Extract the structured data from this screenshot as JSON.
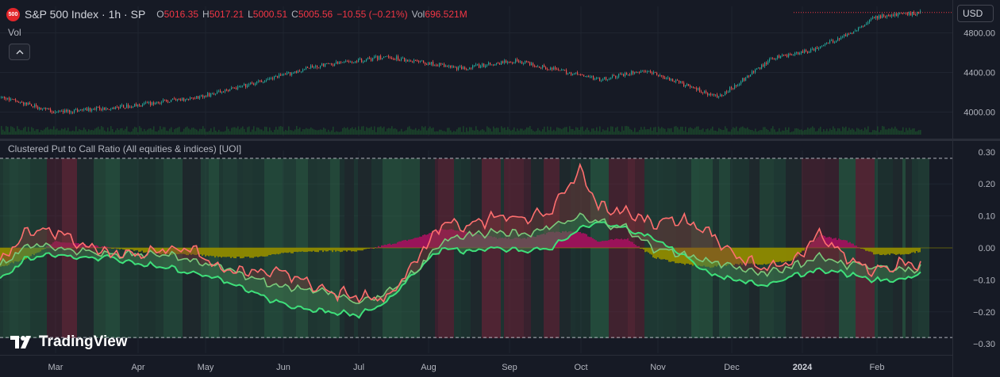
{
  "header": {
    "badge": "500",
    "symbol": "S&P 500 Index · 1h · SP",
    "open_label": "O",
    "open": "5016.35",
    "high_label": "H",
    "high": "5017.21",
    "low_label": "L",
    "low": "5000.51",
    "close_label": "C",
    "close": "5005.56",
    "change": "−10.55 (−0.21%)",
    "vol_label": "Vol",
    "vol": "696.521M"
  },
  "volume_pane_label": "Vol",
  "currency_button": "USD",
  "indicator_title": "Clustered Put to Call Ratio (All equities & indices) [UOI]",
  "brand": "TradingView",
  "colors": {
    "up": "#26a69a",
    "down": "#ef5350",
    "last_price_line": "#f23645",
    "green_band": "#2e6b4a",
    "red_band": "#6b2a3a",
    "dark_band": "#1f2a2e",
    "olive_hist": "#8f8a00",
    "magenta_hist": "#a0125c",
    "bright_green": "#3ee07a",
    "mid_green": "#7bc97a",
    "salmon": "#ff6f6f"
  },
  "chart_data": [
    {
      "type": "line",
      "title": "S&P 500 Index · 1h · SP",
      "subtitle": "candlestick",
      "x_tick_labels": [
        "Mar",
        "Apr",
        "May",
        "Jun",
        "Jul",
        "Aug",
        "Sep",
        "Oct",
        "Nov",
        "Dec",
        "2024",
        "Feb"
      ],
      "x_fraction": [
        0.0,
        0.06,
        0.14,
        0.22,
        0.28,
        0.34,
        0.42,
        0.5,
        0.56,
        0.65,
        0.7,
        0.78,
        0.84,
        0.88,
        0.92,
        0.95,
        1.0
      ],
      "close_values": [
        4150,
        4000,
        4060,
        4160,
        4300,
        4460,
        4560,
        4440,
        4520,
        4330,
        4420,
        4150,
        4550,
        4620,
        4780,
        4960,
        5005
      ],
      "y_tick_labels": [
        "4800.00",
        "4400.00",
        "4000.00"
      ],
      "ylim": [
        3820,
        5020
      ],
      "last_price": 5005.56,
      "grid": true
    },
    {
      "type": "area",
      "title": "Clustered Put to Call Ratio (All equities & indices) [UOI]",
      "x_tick_labels": [
        "Mar",
        "Apr",
        "May",
        "Jun",
        "Jul",
        "Aug",
        "Sep",
        "Oct",
        "Nov",
        "Dec",
        "2024",
        "Feb"
      ],
      "y_tick_labels": [
        "0.30",
        "0.20",
        "0.10",
        "0.00",
        "−0.10",
        "−0.20",
        "−0.30"
      ],
      "ylim": [
        -0.3,
        0.3
      ],
      "reference_lines": [
        0.28,
        -0.28
      ],
      "zero_line": 0,
      "grid": true,
      "x_fraction": [
        0.0,
        0.03,
        0.06,
        0.09,
        0.12,
        0.15,
        0.18,
        0.21,
        0.24,
        0.27,
        0.3,
        0.33,
        0.36,
        0.39,
        0.42,
        0.45,
        0.48,
        0.51,
        0.54,
        0.57,
        0.6,
        0.63,
        0.65,
        0.68,
        0.71,
        0.74,
        0.77,
        0.8,
        0.83,
        0.86,
        0.89,
        0.92,
        0.95,
        0.98,
        1.0
      ],
      "series": [
        {
          "values": [
            -0.05,
            0.06,
            0.05,
            0.01,
            -0.02,
            -0.02,
            0.0,
            -0.01,
            -0.06,
            -0.08,
            -0.07,
            -0.1,
            -0.14,
            -0.15,
            -0.16,
            -0.05,
            0.08,
            0.07,
            0.1,
            0.09,
            0.12,
            0.24,
            0.13,
            0.11,
            0.08,
            0.09,
            0.05,
            -0.03,
            -0.06,
            -0.05,
            0.04,
            -0.03,
            -0.07,
            -0.05,
            -0.06
          ]
        },
        {
          "values": [
            -0.06,
            0.01,
            0.0,
            -0.01,
            -0.02,
            -0.02,
            -0.02,
            -0.04,
            -0.06,
            -0.09,
            -0.12,
            -0.13,
            -0.14,
            -0.17,
            -0.14,
            -0.08,
            0.02,
            0.04,
            0.05,
            0.04,
            0.07,
            0.1,
            0.08,
            0.06,
            0.0,
            -0.02,
            -0.04,
            -0.06,
            -0.08,
            -0.06,
            -0.03,
            -0.05,
            -0.06,
            -0.07,
            -0.06
          ]
        },
        {
          "values": [
            -0.1,
            -0.03,
            -0.02,
            -0.03,
            -0.03,
            -0.05,
            -0.06,
            -0.08,
            -0.1,
            -0.13,
            -0.17,
            -0.19,
            -0.2,
            -0.21,
            -0.17,
            -0.08,
            0.0,
            -0.01,
            0.0,
            -0.01,
            0.0,
            0.06,
            0.08,
            0.06,
            0.03,
            -0.02,
            -0.08,
            -0.1,
            -0.12,
            -0.09,
            -0.07,
            -0.08,
            -0.1,
            -0.1,
            -0.08
          ]
        }
      ],
      "histogram": [
        -0.06,
        -0.03,
        0.02,
        0.01,
        0.0,
        -0.01,
        -0.02,
        -0.02,
        -0.03,
        -0.03,
        -0.02,
        -0.01,
        -0.01,
        -0.01,
        0.01,
        0.03,
        0.06,
        0.05,
        0.03,
        0.03,
        0.05,
        0.05,
        0.02,
        0.03,
        -0.03,
        -0.05,
        -0.06,
        -0.05,
        -0.05,
        -0.04,
        0.04,
        0.02,
        -0.02,
        -0.02,
        -0.01
      ]
    }
  ]
}
